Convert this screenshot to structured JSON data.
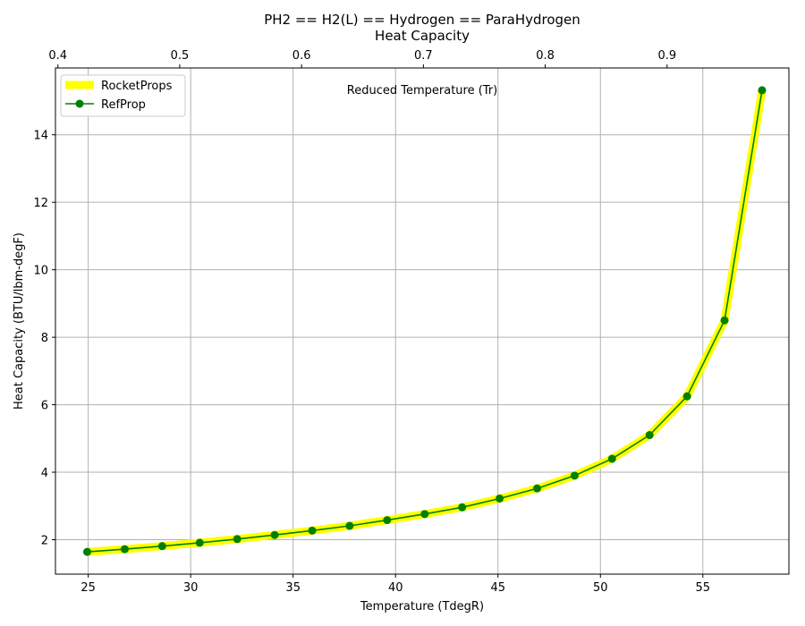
{
  "chart_data": {
    "type": "line",
    "title_lines": [
      "PH2 == H2(L) == Hydrogen == ParaHydrogen",
      "Heat Capacity"
    ],
    "xlabel": "Temperature (TdegR)",
    "ylabel": "Heat Capacity (BTU/lbm-degF)",
    "x2label": "Reduced Temperature (Tr)",
    "xlim": [
      23.4,
      59.2
    ],
    "ylim": [
      0.98,
      15.98
    ],
    "x2lim": [
      0.398,
      1.0
    ],
    "xticks": [
      25,
      30,
      35,
      40,
      45,
      50,
      55
    ],
    "yticks": [
      2,
      4,
      6,
      8,
      10,
      12,
      14
    ],
    "x2ticks": [
      0.4,
      0.5,
      0.6,
      0.7,
      0.8,
      0.9
    ],
    "grid": true,
    "legend_position": "top-left",
    "x": [
      24.95,
      26.78,
      28.61,
      30.44,
      32.27,
      34.1,
      35.93,
      37.76,
      39.59,
      41.42,
      43.25,
      45.08,
      46.91,
      48.74,
      50.57,
      52.4,
      54.23,
      56.06,
      57.89
    ],
    "series": [
      {
        "name": "RocketProps",
        "color": "#ffff00",
        "style": "thick-line",
        "values": [
          1.64,
          1.72,
          1.81,
          1.91,
          2.02,
          2.14,
          2.27,
          2.41,
          2.58,
          2.76,
          2.96,
          3.22,
          3.52,
          3.9,
          4.4,
          5.1,
          6.25,
          8.5,
          15.32
        ]
      },
      {
        "name": "RefProp",
        "color": "#008000",
        "style": "line-markers",
        "values": [
          1.64,
          1.72,
          1.81,
          1.91,
          2.02,
          2.14,
          2.27,
          2.41,
          2.58,
          2.76,
          2.96,
          3.22,
          3.52,
          3.9,
          4.4,
          5.1,
          6.25,
          8.5,
          15.32
        ]
      }
    ]
  }
}
